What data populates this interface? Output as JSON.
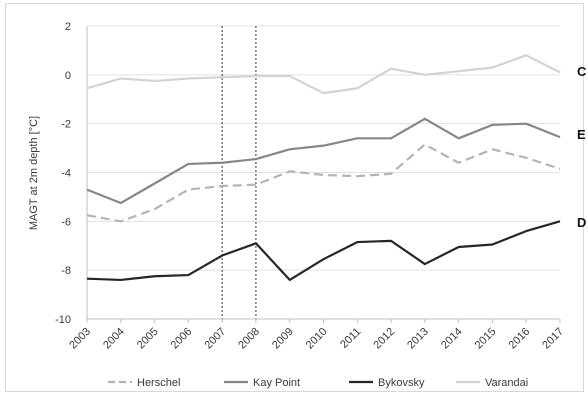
{
  "chart_data": {
    "type": "line",
    "ylabel": "MAGT at 2m depth [°C]",
    "xlabel": "",
    "ylim": [
      -10,
      2
    ],
    "yticks": [
      2,
      0,
      -2,
      -4,
      -6,
      -8,
      -10
    ],
    "x": [
      "2003",
      "2004",
      "2005",
      "2006",
      "2007",
      "2008",
      "2009",
      "2010",
      "2011",
      "2012",
      "2013",
      "2014",
      "2015",
      "2016",
      "2017"
    ],
    "grid": true,
    "legend_position": "bottom",
    "reference_lines_at": [
      "2007",
      "2008"
    ],
    "series": [
      {
        "name": "Herschel",
        "color": "#b4b4b4",
        "dash": true,
        "values": [
          -5.75,
          -6.0,
          -5.5,
          -4.7,
          -4.55,
          -4.5,
          -3.95,
          -4.1,
          -4.15,
          -4.05,
          -2.85,
          -3.6,
          -3.05,
          -3.4,
          -3.85
        ]
      },
      {
        "name": "Kay Point",
        "color": "#878787",
        "dash": false,
        "values": [
          -4.7,
          -5.25,
          -4.45,
          -3.65,
          -3.6,
          -3.45,
          -3.05,
          -2.9,
          -2.6,
          -2.6,
          -1.8,
          -2.6,
          -2.05,
          -2.0,
          -2.55
        ]
      },
      {
        "name": "Bykovsky",
        "color": "#262626",
        "dash": false,
        "values": [
          -8.35,
          -8.4,
          -8.25,
          -8.2,
          -7.4,
          -6.9,
          -8.4,
          -7.55,
          -6.85,
          -6.8,
          -7.75,
          -7.05,
          -6.95,
          -6.4,
          -6.0
        ]
      },
      {
        "name": "Varandai",
        "color": "#d3d3d3",
        "dash": false,
        "values": [
          -0.55,
          -0.15,
          -0.25,
          -0.15,
          -0.1,
          -0.05,
          -0.05,
          -0.75,
          -0.55,
          0.25,
          0.0,
          0.15,
          0.3,
          0.8,
          0.1
        ]
      }
    ],
    "edge_labels": [
      "C",
      "E",
      "D"
    ]
  }
}
